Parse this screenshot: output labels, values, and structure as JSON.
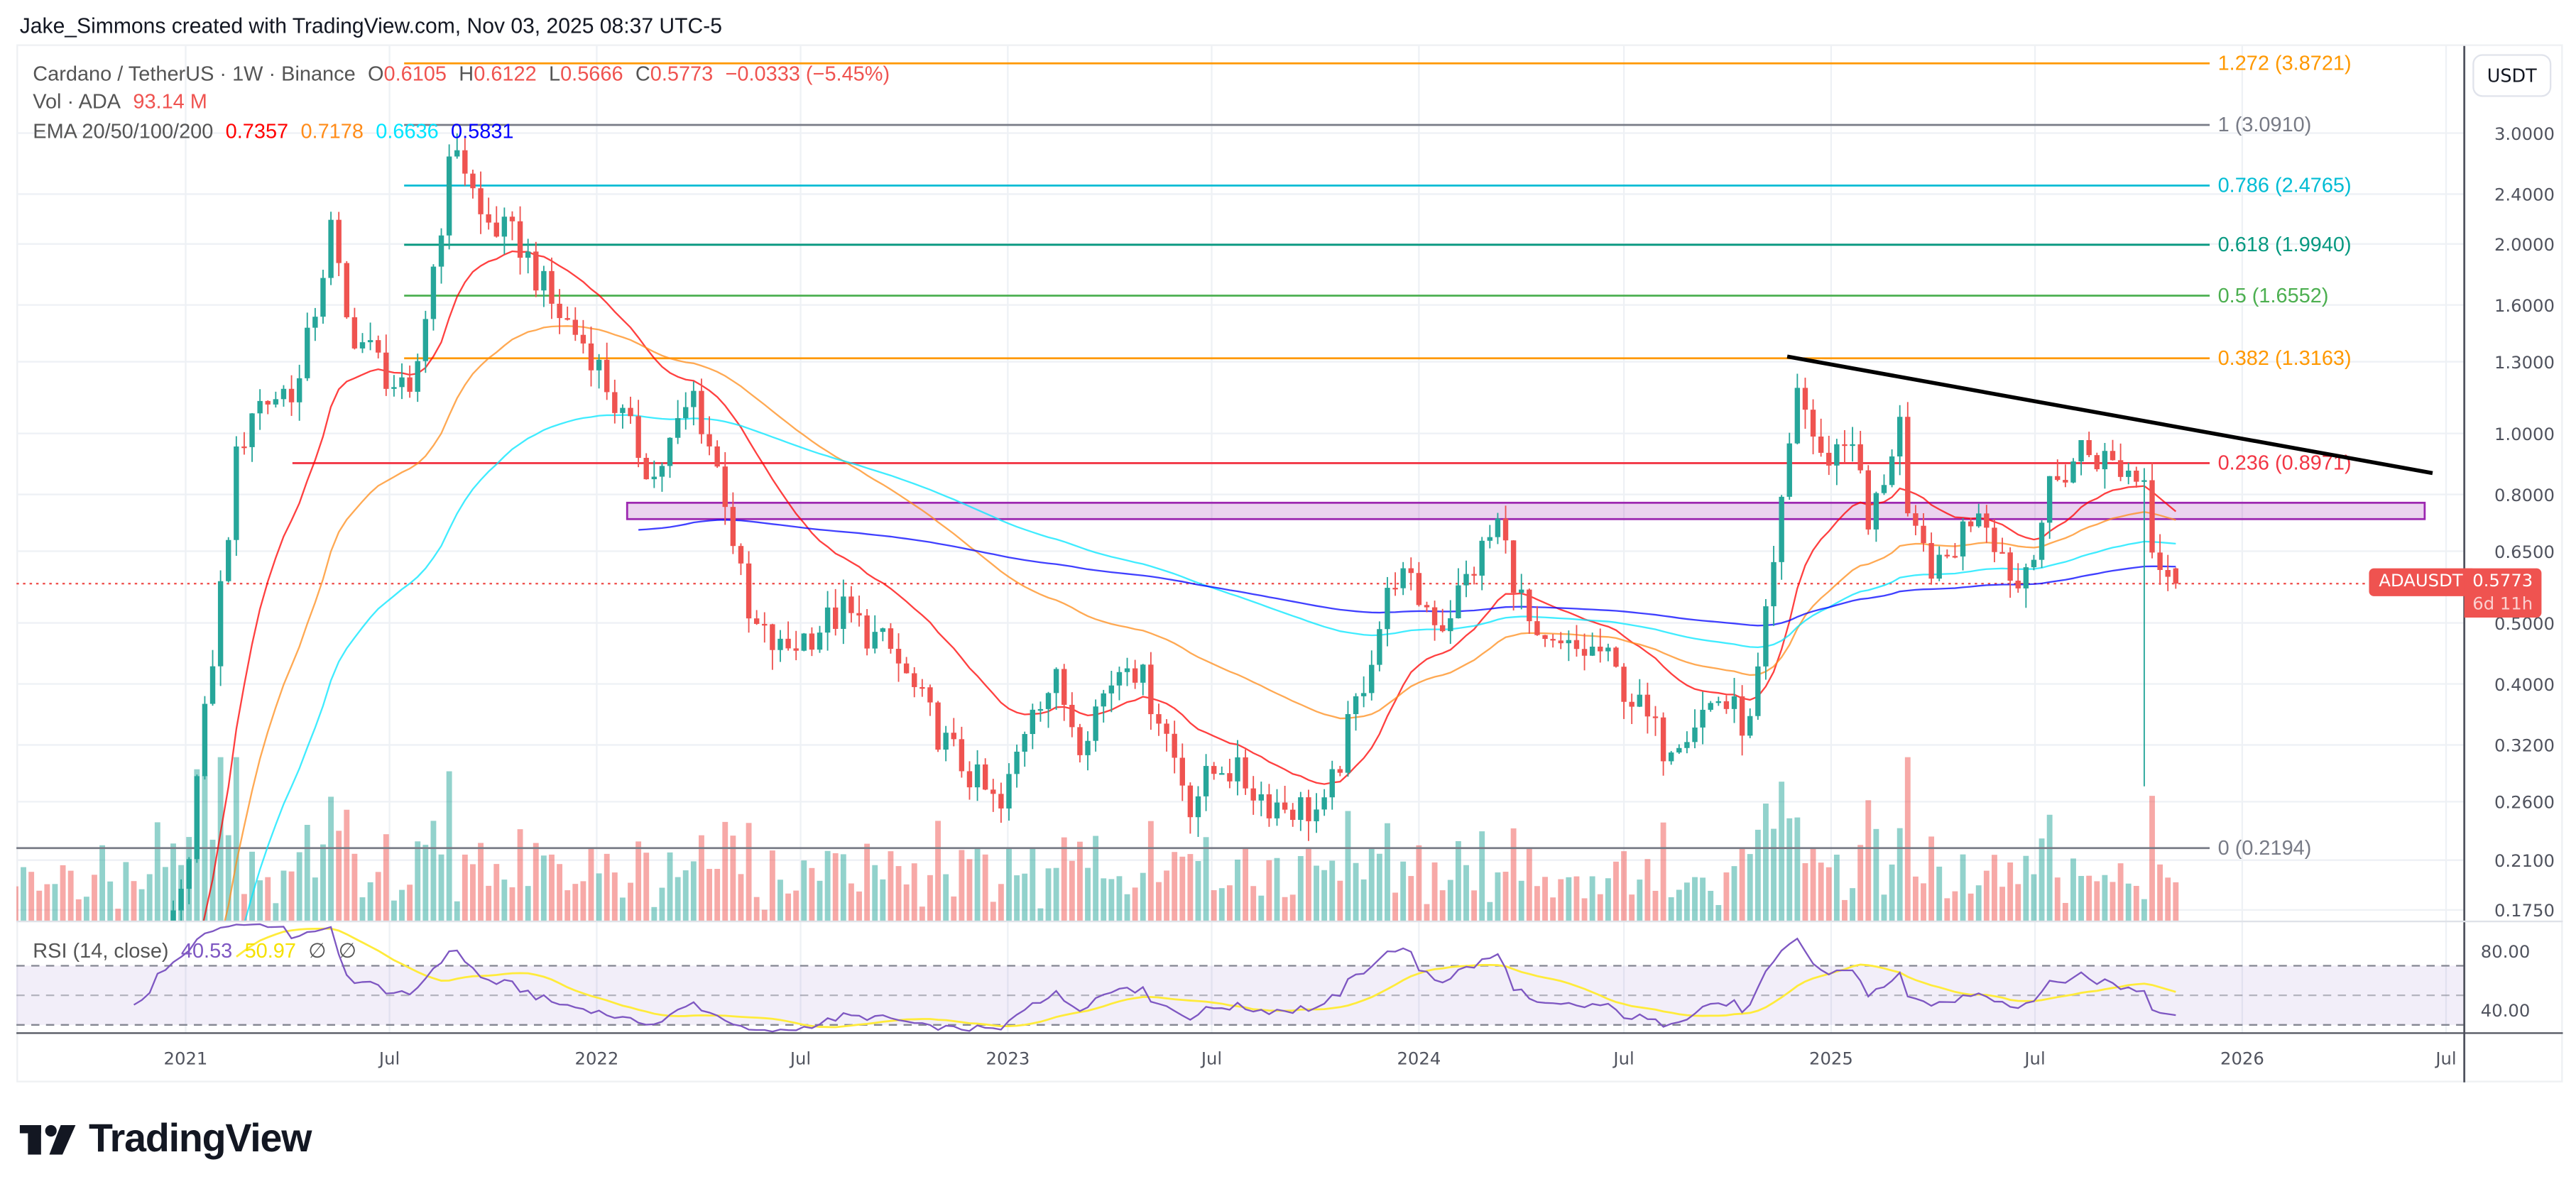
{
  "credit": "Jake_Simmons created with TradingView.com, Nov 03, 2025 08:37 UTC-5",
  "legend": {
    "symbol": "Cardano / TetherUS · 1W · Binance",
    "o_label": "O",
    "o": "0.6105",
    "h_label": "H",
    "h": "0.6122",
    "l_label": "L",
    "l": "0.5666",
    "c_label": "C",
    "c": "0.5773",
    "change": "−0.0333 (−5.45%)",
    "vol_label": "Vol · ADA",
    "vol": "93.14 M",
    "ema_label": "EMA 20/50/100/200",
    "ema_values": [
      "0.7357",
      "0.7178",
      "0.6636",
      "0.5831"
    ],
    "ema_colors": [
      "#ff0000",
      "#ff8c1a",
      "#00e5ff",
      "#0000ff"
    ]
  },
  "rsi_legend": {
    "label": "RSI (14, close)",
    "rsi": "40.53",
    "rsi_ma": "50.97",
    "na1": "∅",
    "na2": "∅"
  },
  "price_axis": {
    "currency": "USDT",
    "ticks": [
      {
        "value": 3.0,
        "label": "3.0000"
      },
      {
        "value": 2.4,
        "label": "2.4000"
      },
      {
        "value": 2.0,
        "label": "2.0000"
      },
      {
        "value": 1.6,
        "label": "1.6000"
      },
      {
        "value": 1.3,
        "label": "1.3000"
      },
      {
        "value": 1.0,
        "label": "1.0000"
      },
      {
        "value": 0.8,
        "label": "0.8000"
      },
      {
        "value": 0.65,
        "label": "0.6500"
      },
      {
        "value": 0.5,
        "label": "0.5000"
      },
      {
        "value": 0.4,
        "label": "0.4000"
      },
      {
        "value": 0.32,
        "label": "0.3200"
      },
      {
        "value": 0.26,
        "label": "0.2600"
      },
      {
        "value": 0.21,
        "label": "0.2100"
      },
      {
        "value": 0.175,
        "label": "0.1750"
      }
    ],
    "scale": "log"
  },
  "rsi_axis": {
    "ticks": [
      {
        "value": 80,
        "label": "80.00"
      },
      {
        "value": 40,
        "label": "40.00"
      }
    ]
  },
  "current_price": {
    "symbol": "ADAUSDT",
    "price": "0.5773",
    "countdown": "6d 11h",
    "color": "#ef5350"
  },
  "logo": "TradingView",
  "chart_data": {
    "type": "candlestick",
    "symbol": "ADAUSDT",
    "interval": "1W",
    "time_axis": [
      {
        "label": "2021",
        "date": "2021-01-01"
      },
      {
        "label": "Jul",
        "date": "2021-07-01"
      },
      {
        "label": "2022",
        "date": "2022-01-01"
      },
      {
        "label": "Jul",
        "date": "2022-07-01"
      },
      {
        "label": "2023",
        "date": "2023-01-01"
      },
      {
        "label": "Jul",
        "date": "2023-07-01"
      },
      {
        "label": "2024",
        "date": "2024-01-01"
      },
      {
        "label": "Jul",
        "date": "2024-07-01"
      },
      {
        "label": "2025",
        "date": "2025-01-01"
      },
      {
        "label": "Jul",
        "date": "2025-07-01"
      },
      {
        "label": "2026",
        "date": "2026-01-01"
      },
      {
        "label": "Jul",
        "date": "2026-07-01"
      }
    ],
    "ylim": [
      0.175,
      3.9
    ],
    "close_path": [
      [
        "2020-08-03",
        0.13
      ],
      [
        "2020-10-01",
        0.1
      ],
      [
        "2020-11-23",
        0.12
      ],
      [
        "2020-12-28",
        0.18
      ],
      [
        "2021-01-18",
        0.35
      ],
      [
        "2021-02-15",
        0.9
      ],
      [
        "2021-03-01",
        1.1
      ],
      [
        "2021-04-12",
        1.2
      ],
      [
        "2021-05-10",
        2.1
      ],
      [
        "2021-05-24",
        1.5
      ],
      [
        "2021-06-21",
        1.3
      ],
      [
        "2021-07-19",
        1.1
      ],
      [
        "2021-08-23",
        2.6
      ],
      [
        "2021-08-30",
        2.9
      ],
      [
        "2021-09-20",
        2.2
      ],
      [
        "2021-10-25",
        2.0
      ],
      [
        "2021-11-22",
        1.6
      ],
      [
        "2021-12-27",
        1.35
      ],
      [
        "2022-01-24",
        1.05
      ],
      [
        "2022-02-21",
        0.85
      ],
      [
        "2022-03-28",
        1.15
      ],
      [
        "2022-04-25",
        0.8
      ],
      [
        "2022-05-16",
        0.5
      ],
      [
        "2022-06-13",
        0.45
      ],
      [
        "2022-08-08",
        0.52
      ],
      [
        "2022-09-19",
        0.45
      ],
      [
        "2022-11-07",
        0.32
      ],
      [
        "2022-12-26",
        0.25
      ],
      [
        "2023-01-23",
        0.38
      ],
      [
        "2023-02-13",
        0.4
      ],
      [
        "2023-03-06",
        0.33
      ],
      [
        "2023-04-17",
        0.45
      ],
      [
        "2023-05-15",
        0.36
      ],
      [
        "2023-06-12",
        0.26
      ],
      [
        "2023-07-10",
        0.3
      ],
      [
        "2023-08-21",
        0.26
      ],
      [
        "2023-10-09",
        0.25
      ],
      [
        "2023-11-06",
        0.37
      ],
      [
        "2023-12-11",
        0.6
      ],
      [
        "2024-01-22",
        0.5
      ],
      [
        "2024-03-11",
        0.72
      ],
      [
        "2024-04-15",
        0.45
      ],
      [
        "2024-06-10",
        0.45
      ],
      [
        "2024-08-05",
        0.32
      ],
      [
        "2024-09-23",
        0.38
      ],
      [
        "2024-10-21",
        0.34
      ],
      [
        "2024-11-11",
        0.6
      ],
      [
        "2024-12-02",
        1.2
      ],
      [
        "2024-12-23",
        0.9
      ],
      [
        "2025-01-20",
        1.0
      ],
      [
        "2025-02-03",
        0.7
      ],
      [
        "2025-03-03",
        1.05
      ],
      [
        "2025-03-10",
        0.7
      ],
      [
        "2025-04-07",
        0.6
      ],
      [
        "2025-05-12",
        0.78
      ],
      [
        "2025-06-16",
        0.57
      ],
      [
        "2025-07-14",
        0.8
      ],
      [
        "2025-08-11",
        0.95
      ],
      [
        "2025-09-15",
        0.88
      ],
      [
        "2025-10-06",
        0.85
      ],
      [
        "2025-10-13",
        0.68
      ],
      [
        "2025-10-27",
        0.61
      ],
      [
        "2025-11-03",
        0.5773
      ]
    ],
    "wick_lows": [
      {
        "date": "2025-10-06",
        "low": 0.275
      }
    ],
    "last_candle": {
      "date": "2025-11-03",
      "open": 0.6105,
      "high": 0.6122,
      "low": 0.5666,
      "close": 0.5773,
      "volume": "93.14 M"
    },
    "up_color": "#26a69a",
    "down_color": "#ef5350",
    "indicators": {
      "ema_periods": [
        20,
        50,
        100,
        200
      ],
      "rsi_period": 14,
      "rsi_levels": [
        70,
        50,
        30
      ],
      "rsi_line_color": "#7e57c2",
      "rsi_ma_color": "#ffeb3b"
    },
    "fibonacci": [
      {
        "ratio": "1.272",
        "price": 3.8721,
        "label": "1.272 (3.8721)",
        "color": "#ff9800"
      },
      {
        "ratio": "1",
        "price": 3.091,
        "label": "1 (3.0910)",
        "color": "#787b86"
      },
      {
        "ratio": "0.786",
        "price": 2.4765,
        "label": "0.786 (2.4765)",
        "color": "#00bcd4"
      },
      {
        "ratio": "0.618",
        "price": 1.994,
        "label": "0.618 (1.9940)",
        "color": "#089981"
      },
      {
        "ratio": "0.5",
        "price": 1.6552,
        "label": "0.5 (1.6552)",
        "color": "#4caf50"
      },
      {
        "ratio": "0.382",
        "price": 1.3163,
        "label": "0.382 (1.3163)",
        "color": "#ff9800"
      },
      {
        "ratio": "0.236",
        "price": 0.8971,
        "label": "0.236 (0.8971)",
        "color": "#f23645"
      },
      {
        "ratio": "0",
        "price": 0.2194,
        "label": "0 (0.2194)",
        "color": "#787b86"
      }
    ],
    "drawings": {
      "support_zone": {
        "from": "2022-01-28",
        "to": "2026-06-12",
        "low": 0.731,
        "high": 0.776,
        "color": "#9c27b0"
      },
      "trendline": {
        "from": [
          "2024-11-23",
          1.325
        ],
        "to": [
          "2026-06-19",
          0.865
        ],
        "color": "#000000"
      }
    }
  }
}
